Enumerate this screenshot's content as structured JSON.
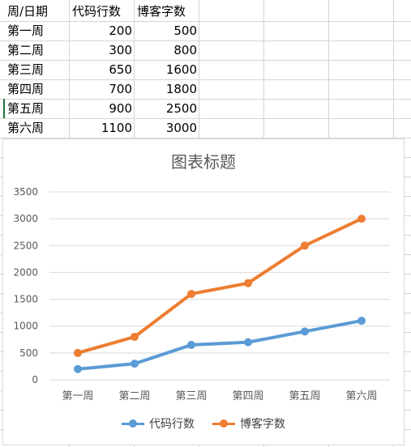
{
  "table": {
    "headers": [
      "周/日期",
      "代码行数",
      "博客字数"
    ],
    "rows": [
      [
        "第一周",
        "200",
        "500"
      ],
      [
        "第二周",
        "300",
        "800"
      ],
      [
        "第三周",
        "650",
        "1600"
      ],
      [
        "第四周",
        "700",
        "1800"
      ],
      [
        "第五周",
        "900",
        "2500"
      ],
      [
        "第六周",
        "1100",
        "3000"
      ]
    ]
  },
  "chart_data": {
    "type": "line",
    "title": "图表标题",
    "categories": [
      "第一周",
      "第二周",
      "第三周",
      "第四周",
      "第五周",
      "第六周"
    ],
    "series": [
      {
        "name": "代码行数",
        "values": [
          200,
          300,
          650,
          700,
          900,
          1100
        ],
        "color": "#5b9bd5"
      },
      {
        "name": "博客字数",
        "values": [
          500,
          800,
          1600,
          1800,
          2500,
          3000
        ],
        "color": "#ed7d31"
      }
    ],
    "ylim": [
      0,
      3500
    ],
    "yticks": [
      0,
      500,
      1000,
      1500,
      2000,
      2500,
      3000,
      3500
    ],
    "grid": true,
    "legend_position": "bottom"
  }
}
